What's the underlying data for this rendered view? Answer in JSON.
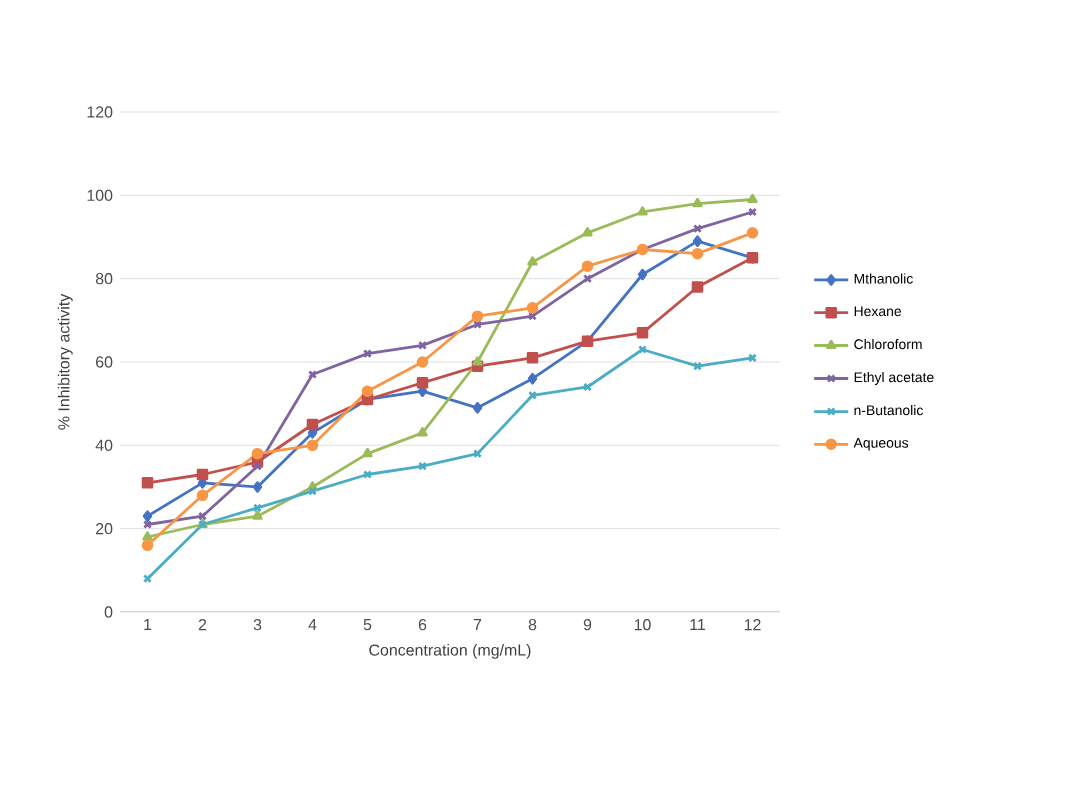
{
  "chart_data": {
    "type": "line",
    "xlabel": "Concentration (mg/mL)",
    "ylabel": "% Inhibitory activity",
    "categories": [
      "1",
      "2",
      "3",
      "4",
      "5",
      "6",
      "7",
      "8",
      "9",
      "10",
      "11",
      "12"
    ],
    "ylim": [
      0,
      120
    ],
    "yticks": [
      0,
      20,
      40,
      60,
      80,
      100,
      120
    ],
    "grid": "y",
    "legend": "right",
    "series": [
      {
        "name": "Mthanolic",
        "color": "#4472c4",
        "marker": "diamond",
        "values": [
          23,
          31,
          30,
          43,
          51,
          53,
          49,
          56,
          65,
          81,
          89,
          85
        ]
      },
      {
        "name": "Hexane",
        "color": "#c0504d",
        "marker": "square",
        "values": [
          31,
          33,
          36,
          45,
          51,
          55,
          59,
          61,
          65,
          67,
          78,
          85
        ]
      },
      {
        "name": "Chloroform",
        "color": "#9bbb59",
        "marker": "triangle",
        "values": [
          18,
          21,
          23,
          30,
          38,
          43,
          60,
          84,
          91,
          96,
          98,
          99
        ]
      },
      {
        "name": "Ethyl acetate",
        "color": "#8064a2",
        "marker": "cross",
        "values": [
          21,
          23,
          35,
          57,
          62,
          64,
          69,
          71,
          80,
          87,
          92,
          96
        ]
      },
      {
        "name": "n-Butanolic",
        "color": "#4bacc6",
        "marker": "cross",
        "values": [
          8,
          21,
          25,
          29,
          33,
          35,
          38,
          52,
          54,
          63,
          59,
          61
        ]
      },
      {
        "name": "Aqueous",
        "color": "#f79646",
        "marker": "circle",
        "values": [
          16,
          28,
          38,
          40,
          53,
          60,
          71,
          73,
          83,
          87,
          86,
          91
        ]
      }
    ]
  }
}
